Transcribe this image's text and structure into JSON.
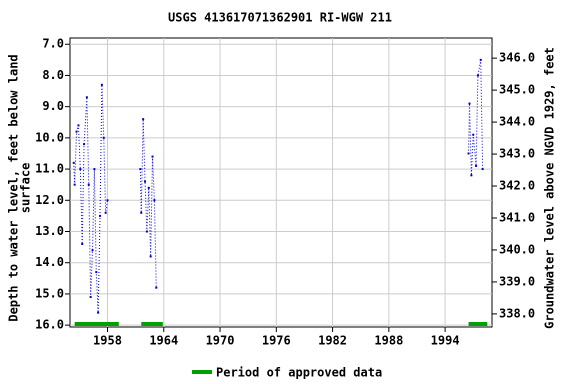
{
  "chart_data": {
    "type": "line",
    "title": "USGS 413617071362901 RI-WGW  211",
    "ylabel": [
      "Depth to water level, feet below land",
      "surface"
    ],
    "y2label": "Groundwater level above NGVD 1929, feet",
    "xlim": [
      1954.0,
      1999.0
    ],
    "xticks": [
      1958,
      1964,
      1970,
      1976,
      1982,
      1988,
      1994
    ],
    "ylim": [
      6.8,
      16.06
    ],
    "y_inverted": true,
    "yticks": [
      {
        "value": 7,
        "label": "7.0"
      },
      {
        "value": 8,
        "label": "8.0"
      },
      {
        "value": 9,
        "label": "9.0"
      },
      {
        "value": 10,
        "label": "10.0"
      },
      {
        "value": 11,
        "label": "11.0"
      },
      {
        "value": 12,
        "label": "12.0"
      },
      {
        "value": 13,
        "label": "13.0"
      },
      {
        "value": 14,
        "label": "14.0"
      },
      {
        "value": 15,
        "label": "15.0"
      },
      {
        "value": 16,
        "label": "16.0"
      }
    ],
    "y2lim": [
      337.59,
      346.63
    ],
    "y2ticks": [
      {
        "value": 338,
        "label": "338.0"
      },
      {
        "value": 339,
        "label": "339.0"
      },
      {
        "value": 340,
        "label": "340.0"
      },
      {
        "value": 341,
        "label": "341.0"
      },
      {
        "value": 342,
        "label": "342.0"
      },
      {
        "value": 343,
        "label": "343.0"
      },
      {
        "value": 344,
        "label": "344.0"
      },
      {
        "value": 345,
        "label": "345.0"
      },
      {
        "value": 346,
        "label": "346.0"
      }
    ],
    "grid": true,
    "x": [
      1954.4,
      1954.5,
      1954.7,
      1954.9,
      1955.1,
      1955.3,
      1955.5,
      1955.8,
      1956.0,
      1956.2,
      1956.4,
      1956.6,
      1956.8,
      1957.0,
      1957.2,
      1957.4,
      1957.6,
      1957.8,
      1958.0,
      1960.0,
      1961.5,
      1961.6,
      1961.8,
      1962.0,
      1962.2,
      1962.4,
      1962.6,
      1962.8,
      1963.0,
      1963.2,
      1980.0,
      1996.5,
      1996.6,
      1996.8,
      1997.0,
      1997.3,
      1997.5,
      1997.8,
      1998.0
    ],
    "series": [
      {
        "color": "#0000cc",
        "values": [
          10.8,
          11.5,
          9.8,
          9.6,
          11.0,
          13.4,
          10.2,
          8.7,
          11.5,
          15.1,
          13.6,
          11.0,
          14.3,
          15.6,
          12.5,
          8.3,
          10.0,
          12.4,
          12.0,
          null,
          11.0,
          12.4,
          9.4,
          11.4,
          13.0,
          11.6,
          13.8,
          10.6,
          12.0,
          14.8,
          null,
          10.5,
          8.9,
          11.2,
          9.9,
          10.9,
          8.0,
          7.5,
          11.0
        ]
      }
    ],
    "approved_periods": {
      "name": "Period of approved data",
      "color": "#00a000",
      "ranges": [
        [
          1954.5,
          1959.2
        ],
        [
          1961.6,
          1963.9
        ],
        [
          1996.5,
          1998.5
        ]
      ]
    }
  }
}
